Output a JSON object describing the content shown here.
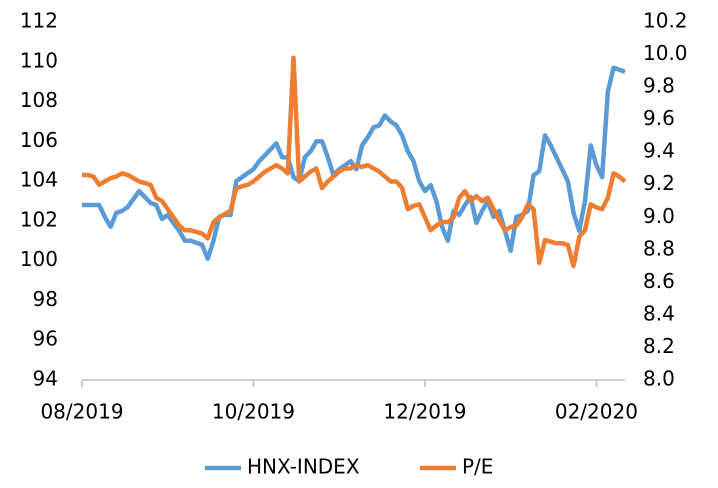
{
  "chart_data": {
    "type": "line",
    "categories": [
      "08/2019",
      null,
      null,
      null,
      null,
      null,
      null,
      null,
      null,
      null,
      null,
      null,
      null,
      null,
      null,
      null,
      null,
      null,
      null,
      null,
      null,
      null,
      null,
      null,
      null,
      null,
      null,
      null,
      null,
      null,
      "10/2019",
      null,
      null,
      null,
      null,
      null,
      null,
      null,
      null,
      null,
      null,
      null,
      null,
      null,
      null,
      null,
      null,
      null,
      null,
      null,
      null,
      null,
      null,
      null,
      null,
      null,
      null,
      null,
      null,
      null,
      "12/2019",
      null,
      null,
      null,
      null,
      null,
      null,
      null,
      null,
      null,
      null,
      null,
      null,
      null,
      null,
      null,
      null,
      null,
      null,
      null,
      null,
      null,
      null,
      null,
      null,
      null,
      null,
      null,
      null,
      null,
      "02/2020",
      null,
      null,
      null,
      null,
      null
    ],
    "series": [
      {
        "name": "HNX-INDEX",
        "color": "#5b9bd5",
        "values": [
          102.8,
          102.8,
          102.8,
          102.8,
          102.2,
          101.7,
          102.4,
          102.5,
          102.7,
          103.1,
          103.5,
          103.2,
          102.9,
          102.8,
          102.1,
          102.3,
          101.9,
          101.5,
          101.0,
          101.0,
          100.9,
          100.8,
          100.1,
          101.0,
          102.2,
          102.3,
          102.3,
          104.0,
          104.2,
          104.4,
          104.6,
          105.0,
          105.3,
          105.6,
          105.9,
          105.2,
          105.2,
          104.2,
          104.0,
          105.2,
          105.5,
          106.0,
          106.0,
          105.2,
          104.3,
          104.6,
          104.8,
          105.0,
          104.6,
          105.8,
          106.2,
          106.7,
          106.8,
          107.3,
          107.0,
          106.8,
          106.3,
          105.5,
          105.0,
          104.0,
          103.5,
          103.8,
          103.0,
          101.7,
          101.0,
          102.5,
          102.3,
          102.8,
          103.2,
          101.9,
          102.5,
          103.0,
          102.2,
          102.5,
          101.5,
          100.5,
          102.2,
          102.3,
          102.5,
          104.3,
          104.5,
          106.3,
          105.8,
          105.2,
          104.6,
          104.0,
          102.4,
          101.5,
          103.0,
          105.8,
          104.8,
          104.2,
          108.5,
          109.7,
          109.6,
          109.5
        ]
      },
      {
        "name": "P/E",
        "color": "#ed7d31",
        "axis": "y2",
        "values": [
          9.26,
          9.26,
          9.25,
          9.2,
          9.22,
          9.24,
          9.25,
          9.27,
          9.26,
          9.24,
          9.22,
          9.21,
          9.2,
          9.12,
          9.1,
          9.05,
          9.0,
          8.95,
          8.92,
          8.92,
          8.91,
          8.9,
          8.87,
          8.97,
          9.0,
          9.02,
          9.04,
          9.18,
          9.19,
          9.2,
          9.22,
          9.25,
          9.28,
          9.3,
          9.32,
          9.3,
          9.27,
          9.98,
          9.22,
          9.25,
          9.28,
          9.3,
          9.18,
          9.22,
          9.25,
          9.28,
          9.3,
          9.3,
          9.32,
          9.31,
          9.32,
          9.3,
          9.28,
          9.25,
          9.22,
          9.22,
          9.18,
          9.05,
          9.07,
          9.08,
          9.0,
          8.92,
          8.95,
          8.97,
          8.97,
          9.0,
          9.12,
          9.16,
          9.1,
          9.13,
          9.1,
          9.12,
          9.05,
          8.98,
          8.92,
          8.94,
          8.95,
          9.0,
          9.08,
          9.05,
          8.72,
          8.86,
          8.85,
          8.84,
          8.84,
          8.83,
          8.7,
          8.88,
          8.92,
          9.08,
          9.06,
          9.05,
          9.12,
          9.27,
          9.25,
          9.22
        ]
      }
    ],
    "ylim": [
      94,
      112
    ],
    "yticks": [
      94,
      96,
      98,
      100,
      102,
      104,
      106,
      108,
      110,
      112
    ],
    "y2lim": [
      8.0,
      10.2
    ],
    "y2ticks": [
      {
        "value": 8.0,
        "label": "8.0"
      },
      8.2,
      8.4,
      8.6,
      8.8,
      {
        "value": 9.0,
        "label": "9.0"
      },
      9.2,
      9.4,
      9.6,
      9.8,
      {
        "value": 10.0,
        "label": "10.0"
      },
      10.2
    ],
    "legend": "bottom"
  }
}
